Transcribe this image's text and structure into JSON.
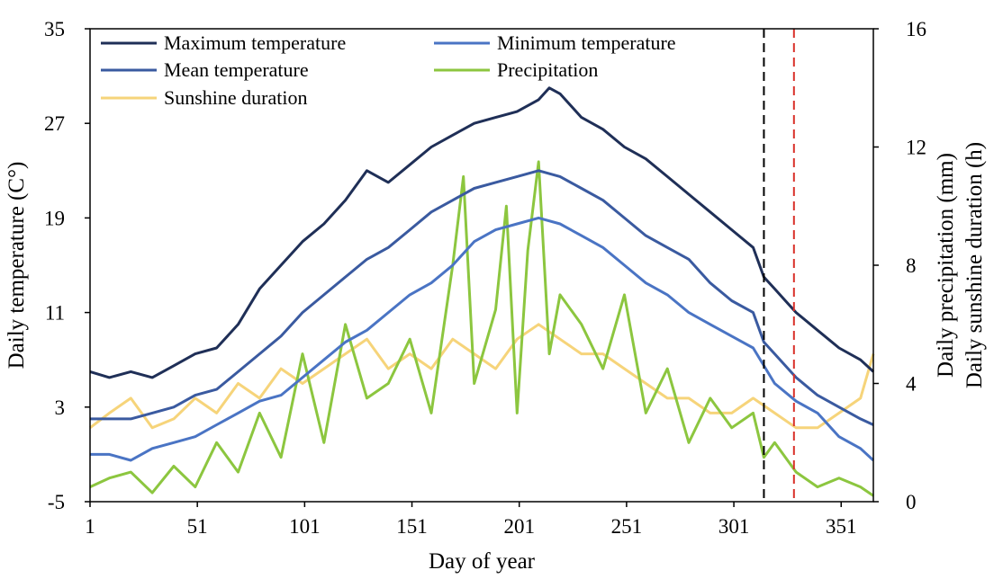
{
  "chart_data": {
    "type": "line",
    "title": "",
    "xlabel": "Day of year",
    "ylabel_left": "Daily temperature (C°)",
    "ylabel_right_line1": "Daily precipitation (mm)",
    "ylabel_right_line2": "Daily sunshine duration (h)",
    "xlim": [
      1,
      366
    ],
    "ylim_left": [
      -5,
      35
    ],
    "ylim_right": [
      0,
      16
    ],
    "x_ticks": [
      1,
      51,
      101,
      151,
      201,
      251,
      301,
      351
    ],
    "x_tick_labels": [
      "1",
      "51",
      "101",
      "151",
      "201",
      "251",
      "301",
      "351"
    ],
    "y_left_ticks": [
      -5,
      3,
      11,
      19,
      27,
      35
    ],
    "y_left_tick_labels": [
      "-5",
      "3",
      "11",
      "19",
      "27",
      "35"
    ],
    "y_right_ticks": [
      0,
      4,
      8,
      12,
      16
    ],
    "y_right_tick_labels": [
      "0",
      "4",
      "8",
      "12",
      "16"
    ],
    "grid": false,
    "legend_position": "top-left",
    "vertical_lines": [
      {
        "x": 315,
        "color": "#000000",
        "style": "dashed"
      },
      {
        "x": 329,
        "color": "#d9302a",
        "style": "dashed"
      }
    ],
    "series": [
      {
        "name": "Maximum temperature",
        "axis": "left",
        "color": "#1f2f57",
        "points": [
          [
            1,
            6.0
          ],
          [
            10,
            5.5
          ],
          [
            20,
            6.0
          ],
          [
            30,
            5.5
          ],
          [
            40,
            6.5
          ],
          [
            50,
            7.5
          ],
          [
            60,
            8.0
          ],
          [
            70,
            10.0
          ],
          [
            80,
            13.0
          ],
          [
            90,
            15.0
          ],
          [
            100,
            17.0
          ],
          [
            110,
            18.5
          ],
          [
            120,
            20.5
          ],
          [
            130,
            23.0
          ],
          [
            140,
            22.0
          ],
          [
            150,
            23.5
          ],
          [
            160,
            25.0
          ],
          [
            170,
            26.0
          ],
          [
            180,
            27.0
          ],
          [
            190,
            27.5
          ],
          [
            200,
            28.0
          ],
          [
            210,
            29.0
          ],
          [
            215,
            30.0
          ],
          [
            220,
            29.5
          ],
          [
            230,
            27.5
          ],
          [
            240,
            26.5
          ],
          [
            250,
            25.0
          ],
          [
            260,
            24.0
          ],
          [
            270,
            22.5
          ],
          [
            280,
            21.0
          ],
          [
            290,
            19.5
          ],
          [
            300,
            18.0
          ],
          [
            310,
            16.5
          ],
          [
            315,
            14.0
          ],
          [
            320,
            13.0
          ],
          [
            325,
            12.0
          ],
          [
            330,
            11.0
          ],
          [
            340,
            9.5
          ],
          [
            350,
            8.0
          ],
          [
            360,
            7.0
          ],
          [
            366,
            6.0
          ]
        ]
      },
      {
        "name": "Minimum temperature",
        "axis": "left",
        "color": "#4a74c4",
        "points": [
          [
            1,
            -1.0
          ],
          [
            10,
            -1.0
          ],
          [
            20,
            -1.5
          ],
          [
            30,
            -0.5
          ],
          [
            40,
            0.0
          ],
          [
            50,
            0.5
          ],
          [
            60,
            1.5
          ],
          [
            70,
            2.5
          ],
          [
            80,
            3.5
          ],
          [
            90,
            4.0
          ],
          [
            100,
            5.5
          ],
          [
            110,
            7.0
          ],
          [
            120,
            8.5
          ],
          [
            130,
            9.5
          ],
          [
            140,
            11.0
          ],
          [
            150,
            12.5
          ],
          [
            160,
            13.5
          ],
          [
            170,
            15.0
          ],
          [
            180,
            17.0
          ],
          [
            190,
            18.0
          ],
          [
            200,
            18.5
          ],
          [
            210,
            19.0
          ],
          [
            220,
            18.5
          ],
          [
            230,
            17.5
          ],
          [
            240,
            16.5
          ],
          [
            250,
            15.0
          ],
          [
            260,
            13.5
          ],
          [
            270,
            12.5
          ],
          [
            280,
            11.0
          ],
          [
            290,
            10.0
          ],
          [
            300,
            9.0
          ],
          [
            310,
            8.0
          ],
          [
            320,
            5.0
          ],
          [
            330,
            3.5
          ],
          [
            340,
            2.5
          ],
          [
            350,
            0.5
          ],
          [
            360,
            -0.5
          ],
          [
            366,
            -1.5
          ]
        ]
      },
      {
        "name": "Mean temperature",
        "axis": "left",
        "color": "#3a5aa0",
        "points": [
          [
            1,
            2.0
          ],
          [
            10,
            2.0
          ],
          [
            20,
            2.0
          ],
          [
            30,
            2.5
          ],
          [
            40,
            3.0
          ],
          [
            50,
            4.0
          ],
          [
            60,
            4.5
          ],
          [
            70,
            6.0
          ],
          [
            80,
            7.5
          ],
          [
            90,
            9.0
          ],
          [
            100,
            11.0
          ],
          [
            110,
            12.5
          ],
          [
            120,
            14.0
          ],
          [
            130,
            15.5
          ],
          [
            140,
            16.5
          ],
          [
            150,
            18.0
          ],
          [
            160,
            19.5
          ],
          [
            170,
            20.5
          ],
          [
            180,
            21.5
          ],
          [
            190,
            22.0
          ],
          [
            200,
            22.5
          ],
          [
            210,
            23.0
          ],
          [
            220,
            22.5
          ],
          [
            230,
            21.5
          ],
          [
            240,
            20.5
          ],
          [
            250,
            19.0
          ],
          [
            260,
            17.5
          ],
          [
            270,
            16.5
          ],
          [
            280,
            15.5
          ],
          [
            290,
            13.5
          ],
          [
            300,
            12.0
          ],
          [
            310,
            11.0
          ],
          [
            315,
            8.5
          ],
          [
            320,
            7.5
          ],
          [
            330,
            5.5
          ],
          [
            340,
            4.0
          ],
          [
            350,
            3.0
          ],
          [
            360,
            2.0
          ],
          [
            366,
            1.5
          ]
        ]
      },
      {
        "name": "Precipitation",
        "axis": "right",
        "color": "#8cc63f",
        "points": [
          [
            1,
            0.5
          ],
          [
            10,
            0.8
          ],
          [
            20,
            1.0
          ],
          [
            30,
            0.3
          ],
          [
            40,
            1.2
          ],
          [
            50,
            0.5
          ],
          [
            60,
            2.0
          ],
          [
            70,
            1.0
          ],
          [
            80,
            3.0
          ],
          [
            90,
            1.5
          ],
          [
            100,
            5.0
          ],
          [
            110,
            2.0
          ],
          [
            120,
            6.0
          ],
          [
            130,
            3.5
          ],
          [
            140,
            4.0
          ],
          [
            150,
            5.5
          ],
          [
            160,
            3.0
          ],
          [
            170,
            8.0
          ],
          [
            175,
            11.0
          ],
          [
            180,
            4.0
          ],
          [
            190,
            6.5
          ],
          [
            195,
            10.0
          ],
          [
            200,
            3.0
          ],
          [
            205,
            8.5
          ],
          [
            210,
            11.5
          ],
          [
            215,
            5.0
          ],
          [
            220,
            7.0
          ],
          [
            230,
            6.0
          ],
          [
            240,
            4.5
          ],
          [
            250,
            7.0
          ],
          [
            260,
            3.0
          ],
          [
            270,
            4.5
          ],
          [
            280,
            2.0
          ],
          [
            290,
            3.5
          ],
          [
            300,
            2.5
          ],
          [
            310,
            3.0
          ],
          [
            315,
            1.5
          ],
          [
            320,
            2.0
          ],
          [
            330,
            1.0
          ],
          [
            340,
            0.5
          ],
          [
            350,
            0.8
          ],
          [
            360,
            0.5
          ],
          [
            366,
            0.2
          ]
        ]
      },
      {
        "name": "Sunshine duration",
        "axis": "right",
        "color": "#f6d47a",
        "points": [
          [
            1,
            2.5
          ],
          [
            10,
            3.0
          ],
          [
            20,
            3.5
          ],
          [
            30,
            2.5
          ],
          [
            40,
            2.8
          ],
          [
            50,
            3.5
          ],
          [
            60,
            3.0
          ],
          [
            70,
            4.0
          ],
          [
            80,
            3.5
          ],
          [
            90,
            4.5
          ],
          [
            100,
            4.0
          ],
          [
            110,
            4.5
          ],
          [
            120,
            5.0
          ],
          [
            130,
            5.5
          ],
          [
            140,
            4.5
          ],
          [
            150,
            5.0
          ],
          [
            160,
            4.5
          ],
          [
            170,
            5.5
          ],
          [
            180,
            5.0
          ],
          [
            190,
            4.5
          ],
          [
            200,
            5.5
          ],
          [
            210,
            6.0
          ],
          [
            220,
            5.5
          ],
          [
            230,
            5.0
          ],
          [
            240,
            5.0
          ],
          [
            250,
            4.5
          ],
          [
            260,
            4.0
          ],
          [
            270,
            3.5
          ],
          [
            280,
            3.5
          ],
          [
            290,
            3.0
          ],
          [
            300,
            3.0
          ],
          [
            310,
            3.5
          ],
          [
            320,
            3.0
          ],
          [
            330,
            2.5
          ],
          [
            340,
            2.5
          ],
          [
            350,
            3.0
          ],
          [
            360,
            3.5
          ],
          [
            366,
            5.0
          ]
        ]
      }
    ]
  }
}
